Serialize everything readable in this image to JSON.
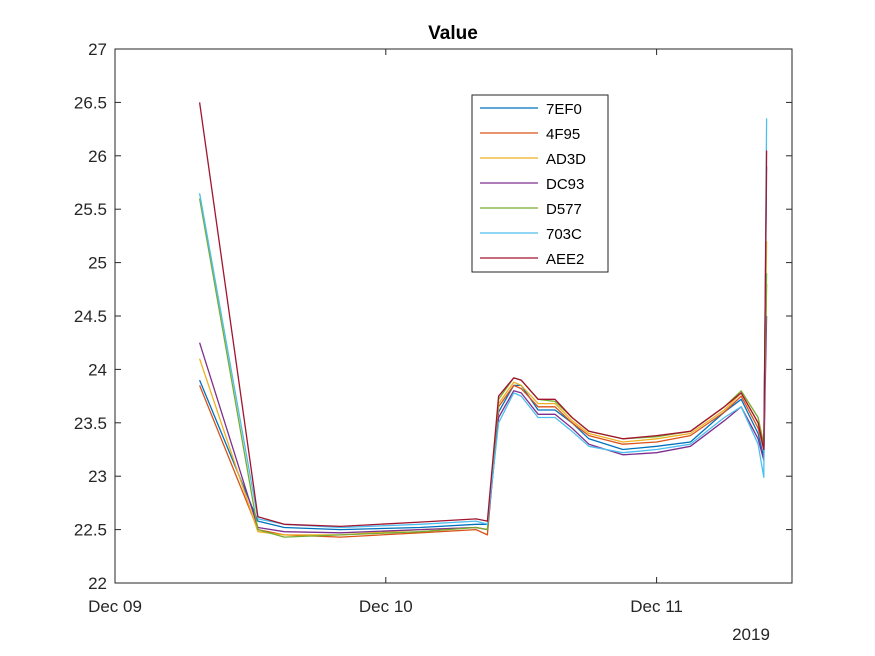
{
  "chart_data": {
    "type": "line",
    "title": "Value",
    "xlabel": "",
    "ylabel": "",
    "x_tick_labels": [
      "Dec 09",
      "Dec 10",
      "Dec 11"
    ],
    "x_secondary_label": "2019",
    "xlim": [
      "2019-12-09T00:00",
      "2019-12-11T12:00"
    ],
    "ylim": [
      22,
      27
    ],
    "y_ticks": [
      22,
      22.5,
      23,
      23.5,
      24,
      24.5,
      25,
      25.5,
      26,
      26.5,
      27
    ],
    "y_tick_labels": [
      "22",
      "22.5",
      "23",
      "23.5",
      "24",
      "24.5",
      "25",
      "25.5",
      "26",
      "26.5",
      "27"
    ],
    "grid": false,
    "legend_position": "top-center",
    "x": [
      "2019-12-09T07:30",
      "2019-12-09T12:40",
      "2019-12-09T15:00",
      "2019-12-09T20:00",
      "2019-12-10T03:00",
      "2019-12-10T08:00",
      "2019-12-10T09:00",
      "2019-12-10T10:00",
      "2019-12-10T11:20",
      "2019-12-10T12:00",
      "2019-12-10T13:30",
      "2019-12-10T15:00",
      "2019-12-10T16:30",
      "2019-12-10T18:00",
      "2019-12-10T21:00",
      "2019-12-11T00:00",
      "2019-12-11T03:00",
      "2019-12-11T06:00",
      "2019-12-11T07:30",
      "2019-12-11T09:00",
      "2019-12-11T09:30",
      "2019-12-11T09:45"
    ],
    "series": [
      {
        "name": "7EF0",
        "color": "#0072BD",
        "values": [
          23.9,
          22.58,
          22.52,
          22.5,
          22.52,
          22.55,
          22.55,
          23.6,
          23.85,
          23.85,
          23.62,
          23.62,
          23.5,
          23.35,
          23.25,
          23.28,
          23.32,
          23.6,
          23.72,
          23.4,
          23.18,
          25.9
        ]
      },
      {
        "name": "4F95",
        "color": "#D95319",
        "values": [
          23.85,
          22.5,
          22.45,
          22.43,
          22.47,
          22.5,
          22.45,
          23.65,
          23.85,
          23.82,
          23.65,
          23.65,
          23.5,
          23.38,
          23.3,
          23.32,
          23.38,
          23.6,
          23.75,
          23.45,
          23.25,
          24.8
        ]
      },
      {
        "name": "AD3D",
        "color": "#EDB120",
        "values": [
          24.1,
          22.48,
          22.45,
          22.45,
          22.5,
          22.52,
          22.5,
          23.68,
          23.88,
          23.85,
          23.68,
          23.68,
          23.52,
          23.4,
          23.32,
          23.35,
          23.4,
          23.62,
          23.78,
          23.5,
          23.3,
          25.2
        ]
      },
      {
        "name": "DC93",
        "color": "#7E2F8E",
        "values": [
          24.25,
          22.52,
          22.48,
          22.47,
          22.5,
          22.52,
          22.5,
          23.55,
          23.8,
          23.78,
          23.58,
          23.58,
          23.45,
          23.3,
          23.2,
          23.22,
          23.28,
          23.52,
          23.65,
          23.35,
          23.15,
          24.5
        ]
      },
      {
        "name": "D577",
        "color": "#77AC30",
        "values": [
          25.6,
          22.5,
          22.43,
          22.45,
          22.48,
          22.52,
          22.5,
          23.72,
          23.92,
          23.9,
          23.72,
          23.7,
          23.55,
          23.42,
          23.35,
          23.37,
          23.42,
          23.65,
          23.8,
          23.55,
          23.3,
          24.9
        ]
      },
      {
        "name": "703C",
        "color": "#4DBEEE",
        "values": [
          25.65,
          22.6,
          22.55,
          22.52,
          22.55,
          22.58,
          22.55,
          23.5,
          23.78,
          23.75,
          23.55,
          23.55,
          23.42,
          23.28,
          23.22,
          23.25,
          23.3,
          23.55,
          23.65,
          23.3,
          22.99,
          26.35
        ]
      },
      {
        "name": "AEE2",
        "color": "#A2142F",
        "values": [
          26.5,
          22.62,
          22.55,
          22.53,
          22.57,
          22.6,
          22.58,
          23.75,
          23.92,
          23.9,
          23.72,
          23.72,
          23.55,
          23.42,
          23.35,
          23.38,
          23.42,
          23.65,
          23.78,
          23.5,
          23.25,
          26.05
        ]
      }
    ]
  }
}
